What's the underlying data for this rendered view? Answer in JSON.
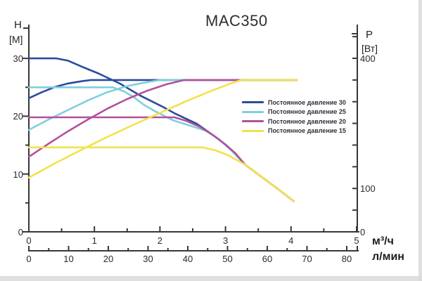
{
  "title": "MAC350",
  "axes": {
    "left": {
      "name": "H",
      "unit": "[М]",
      "major_ticks": [
        30,
        20,
        10,
        0
      ],
      "minor_ticks": [
        25,
        15,
        5
      ],
      "range": [
        0,
        36
      ]
    },
    "right": {
      "name": "P",
      "unit": "[Вт]",
      "labeled_ticks": [
        {
          "value": 400,
          "label": "400"
        },
        {
          "value": 100,
          "label": "100"
        },
        {
          "value": 0,
          "label": "0"
        }
      ],
      "minor_ticks": [
        50,
        100,
        150,
        200,
        250,
        300,
        350,
        400,
        450
      ],
      "range": [
        0,
        478
      ]
    },
    "x_primary": {
      "unit": "м³/ч",
      "major_ticks": [
        0,
        1,
        2,
        3,
        4,
        5
      ],
      "minor_step": 0.5,
      "range": [
        0,
        5
      ]
    },
    "x_secondary": {
      "unit": "л/мин",
      "major_ticks": [
        0,
        10,
        20,
        30,
        40,
        50,
        60,
        70,
        80
      ],
      "minor_step": 5,
      "range": [
        0,
        83
      ]
    }
  },
  "legend": [
    {
      "label": "Постоянное давление 30",
      "color": "#2c4a9d"
    },
    {
      "label": "Постоянное давление 25",
      "color": "#7fcfdc"
    },
    {
      "label": "Постоянное давление 20",
      "color": "#b2509e"
    },
    {
      "label": "Постоянное давление 15",
      "color": "#f3e14c"
    }
  ],
  "chart_data": {
    "type": "line",
    "title": "MAC350",
    "x_unit": "м³/ч",
    "left_axis_unit": "м (напор H)",
    "right_axis_unit": "Вт (мощность P)",
    "grid": false,
    "legend_position": "middle-right",
    "head_curves": [
      {
        "name": "Постоянное давление 30",
        "setting": 30,
        "color": "#2c4a9d",
        "axis": "left",
        "points": [
          [
            0,
            30
          ],
          [
            0.42,
            30
          ],
          [
            0.6,
            29.6
          ],
          [
            0.8,
            28.6
          ],
          [
            1.06,
            27.4
          ],
          [
            1.38,
            25.7
          ],
          [
            1.71,
            23.5
          ],
          [
            2.03,
            21.7
          ],
          [
            2.24,
            20.4
          ],
          [
            2.56,
            18.7
          ],
          [
            2.9,
            16.0
          ],
          [
            3.1,
            14.0
          ],
          [
            3.3,
            11.6
          ],
          [
            3.55,
            9.5
          ],
          [
            3.8,
            7.4
          ],
          [
            4.04,
            5.3
          ]
        ]
      },
      {
        "name": "Постоянное давление 25",
        "setting": 25,
        "color": "#7fcfdc",
        "axis": "left",
        "points": [
          [
            0,
            25
          ],
          [
            1.28,
            25
          ],
          [
            1.45,
            24.3
          ],
          [
            1.6,
            23.3
          ],
          [
            1.75,
            22.0
          ],
          [
            1.95,
            20.7
          ],
          [
            2.2,
            19.3
          ],
          [
            2.45,
            18.4
          ],
          [
            2.7,
            17.5
          ],
          [
            2.9,
            16.0
          ],
          [
            3.1,
            14.0
          ],
          [
            3.3,
            11.6
          ],
          [
            3.55,
            9.5
          ],
          [
            3.8,
            7.4
          ],
          [
            4.04,
            5.3
          ]
        ]
      },
      {
        "name": "Постоянное давление 20",
        "setting": 20,
        "color": "#b2509e",
        "axis": "left",
        "points": [
          [
            0,
            19.8
          ],
          [
            2.22,
            19.8
          ],
          [
            2.4,
            19.2
          ],
          [
            2.6,
            18.2
          ],
          [
            2.8,
            16.8
          ],
          [
            3.0,
            15.1
          ],
          [
            3.15,
            13.6
          ],
          [
            3.3,
            11.6
          ],
          [
            3.55,
            9.5
          ],
          [
            3.8,
            7.4
          ],
          [
            4.04,
            5.3
          ]
        ]
      },
      {
        "name": "Постоянное давление 15",
        "setting": 15,
        "color": "#f3e14c",
        "axis": "left",
        "points": [
          [
            0,
            14.6
          ],
          [
            2.65,
            14.6
          ],
          [
            2.85,
            14.1
          ],
          [
            3.05,
            13.2
          ],
          [
            3.3,
            11.6
          ],
          [
            3.55,
            9.5
          ],
          [
            3.8,
            7.4
          ],
          [
            4.04,
            5.3
          ]
        ]
      }
    ],
    "power_curves": [
      {
        "name": "P — Постоянное давление 30",
        "setting": 30,
        "color": "#2c4a9d",
        "axis": "right",
        "points": [
          [
            0,
            308
          ],
          [
            0.2,
            322
          ],
          [
            0.4,
            334
          ],
          [
            0.6,
            342
          ],
          [
            0.8,
            347
          ],
          [
            0.95,
            350
          ],
          [
            4.09,
            350
          ]
        ]
      },
      {
        "name": "P — Постоянное давление 25",
        "setting": 25,
        "color": "#7fcfdc",
        "axis": "right",
        "points": [
          [
            0,
            235
          ],
          [
            0.3,
            259
          ],
          [
            0.6,
            281
          ],
          [
            0.9,
            303
          ],
          [
            1.2,
            322
          ],
          [
            1.5,
            336
          ],
          [
            1.8,
            345
          ],
          [
            2.0,
            350
          ],
          [
            4.09,
            350
          ]
        ]
      },
      {
        "name": "P — Постоянное давление 20",
        "setting": 20,
        "color": "#b2509e",
        "axis": "right",
        "points": [
          [
            0,
            173
          ],
          [
            0.3,
            203
          ],
          [
            0.6,
            232
          ],
          [
            0.9,
            259
          ],
          [
            1.2,
            284
          ],
          [
            1.5,
            306
          ],
          [
            1.8,
            325
          ],
          [
            2.1,
            340
          ],
          [
            2.37,
            350
          ],
          [
            4.09,
            350
          ]
        ]
      },
      {
        "name": "P — Постоянное давление 15",
        "setting": 15,
        "color": "#f3e14c",
        "axis": "right",
        "points": [
          [
            0,
            125
          ],
          [
            0.4,
            158
          ],
          [
            0.8,
            189
          ],
          [
            1.2,
            219
          ],
          [
            1.6,
            247
          ],
          [
            2.0,
            274
          ],
          [
            2.4,
            301
          ],
          [
            2.8,
            326
          ],
          [
            3.1,
            343
          ],
          [
            3.24,
            350
          ],
          [
            4.09,
            350
          ]
        ]
      }
    ]
  }
}
